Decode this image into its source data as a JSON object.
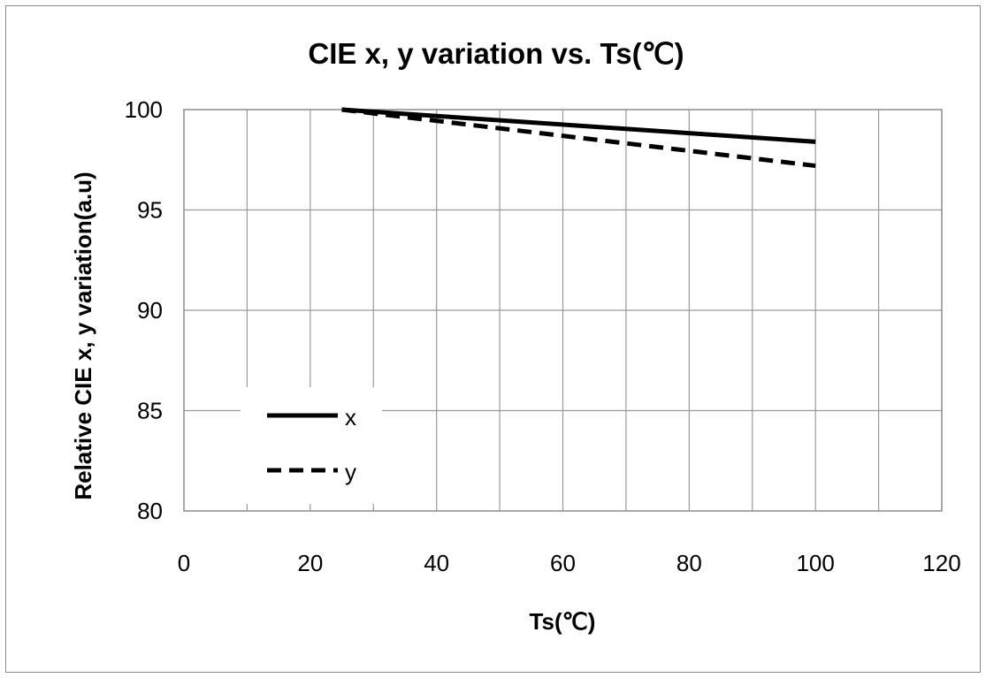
{
  "chart_data": {
    "type": "line",
    "title": "CIE x, y variation vs. Ts(℃)",
    "xlabel": "Ts(℃)",
    "ylabel": "Relative CIE  x, y variation(a.u)",
    "xlim": [
      0,
      120
    ],
    "ylim": [
      80,
      100
    ],
    "xticks": [
      "0",
      "20",
      "40",
      "60",
      "80",
      "100",
      "120"
    ],
    "yticks": [
      "80",
      "85",
      "90",
      "95",
      "100"
    ],
    "grid": true,
    "legend_position": "lower-left",
    "series": [
      {
        "name": "x",
        "style": "solid",
        "color": "#000000",
        "x": [
          25,
          100
        ],
        "y": [
          100,
          98.4
        ]
      },
      {
        "name": "y",
        "style": "dashed",
        "color": "#000000",
        "x": [
          25,
          100
        ],
        "y": [
          100,
          97.2
        ]
      }
    ]
  }
}
